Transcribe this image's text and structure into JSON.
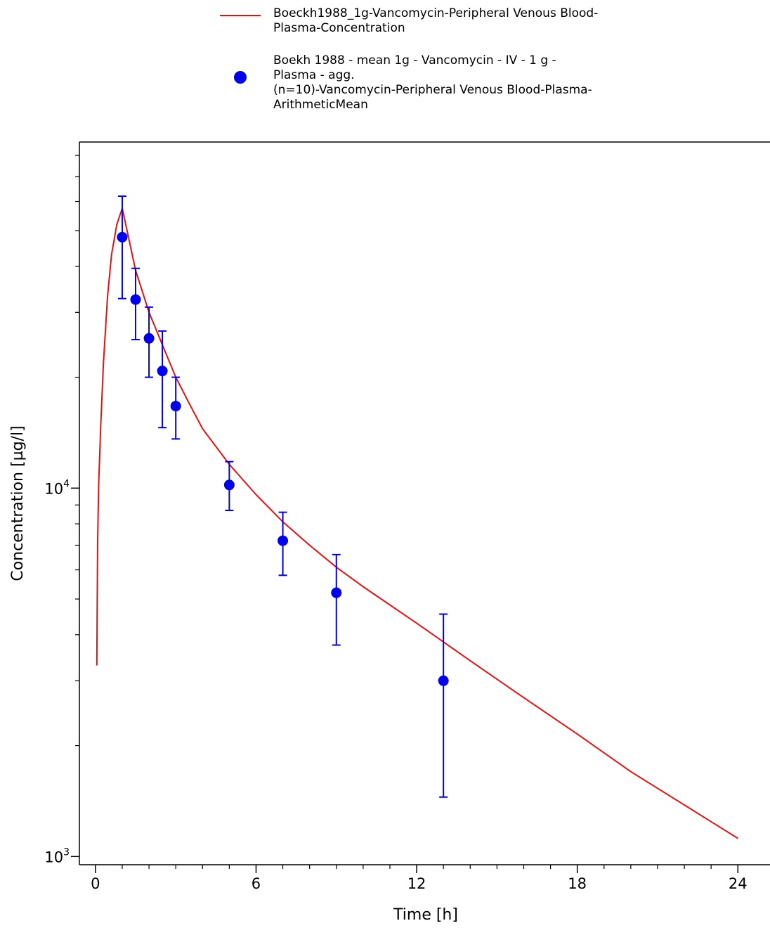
{
  "chart_data": {
    "type": "line",
    "xlabel": "Time [h]",
    "ylabel": "Concentration [µg/l]",
    "y_scale": "log",
    "xlim": [
      -0.6,
      25.2
    ],
    "ylim": [
      950,
      87000
    ],
    "x_ticks": [
      0,
      6,
      12,
      18,
      24
    ],
    "x_tick_labels": [
      "0",
      "6",
      "12",
      "18",
      "24"
    ],
    "y_ticks": [
      1000,
      10000
    ],
    "y_tick_labels": [
      {
        "base": "10",
        "exp": "3"
      },
      {
        "base": "10",
        "exp": "4"
      }
    ],
    "grid": false,
    "legend_position": "top",
    "colors": {
      "simulation": "#e8100f",
      "observed": "#0000ee"
    },
    "series": [
      {
        "name": "Boeckh1988_1g-Vancomycin-Peripheral Venous Blood-Plasma-Concentration",
        "legend_lines": [
          "Boeckh1988_1g-Vancomycin-Peripheral Venous Blood-",
          "Plasma-Concentration"
        ],
        "kind": "line",
        "x": [
          0.05,
          0.08,
          0.12,
          0.2,
          0.3,
          0.45,
          0.6,
          0.8,
          1.0,
          1.5,
          2.0,
          2.5,
          3.0,
          3.5,
          4.0,
          5.0,
          6.0,
          7.0,
          8.0,
          9.0,
          10.0,
          12.0,
          14.0,
          16.0,
          18.0,
          20.0,
          22.0,
          24.0
        ],
        "y": [
          3300,
          7000,
          10200,
          15000,
          22000,
          33000,
          43000,
          52000,
          57500,
          39000,
          30000,
          24500,
          20000,
          17000,
          14500,
          11600,
          9600,
          8100,
          7000,
          6100,
          5400,
          4300,
          3400,
          2700,
          2150,
          1700,
          1380,
          1120
        ]
      },
      {
        "name": "Boekh 1988 - mean 1g - Vancomycin - IV - 1 g - Plasma - agg. (n=10)-Vancomycin-Peripheral Venous Blood-Plasma-ArithmeticMean",
        "legend_lines": [
          "Boekh 1988 - mean 1g - Vancomycin - IV - 1 g -",
          "Plasma - agg.",
          "(n=10)-Vancomycin-Peripheral Venous Blood-Plasma-",
          "ArithmeticMean"
        ],
        "kind": "scatter",
        "x": [
          1.0,
          1.5,
          2.0,
          2.5,
          3.0,
          5.0,
          7.0,
          9.0,
          13.0
        ],
        "y": [
          48000,
          32500,
          25500,
          20800,
          16700,
          10200,
          7200,
          5200,
          3000
        ],
        "err_low": [
          32700,
          25300,
          20000,
          14600,
          13600,
          8700,
          5800,
          3750,
          1450
        ],
        "err_high": [
          62000,
          39500,
          31000,
          26700,
          20000,
          11800,
          8600,
          6600,
          4550
        ]
      }
    ]
  }
}
